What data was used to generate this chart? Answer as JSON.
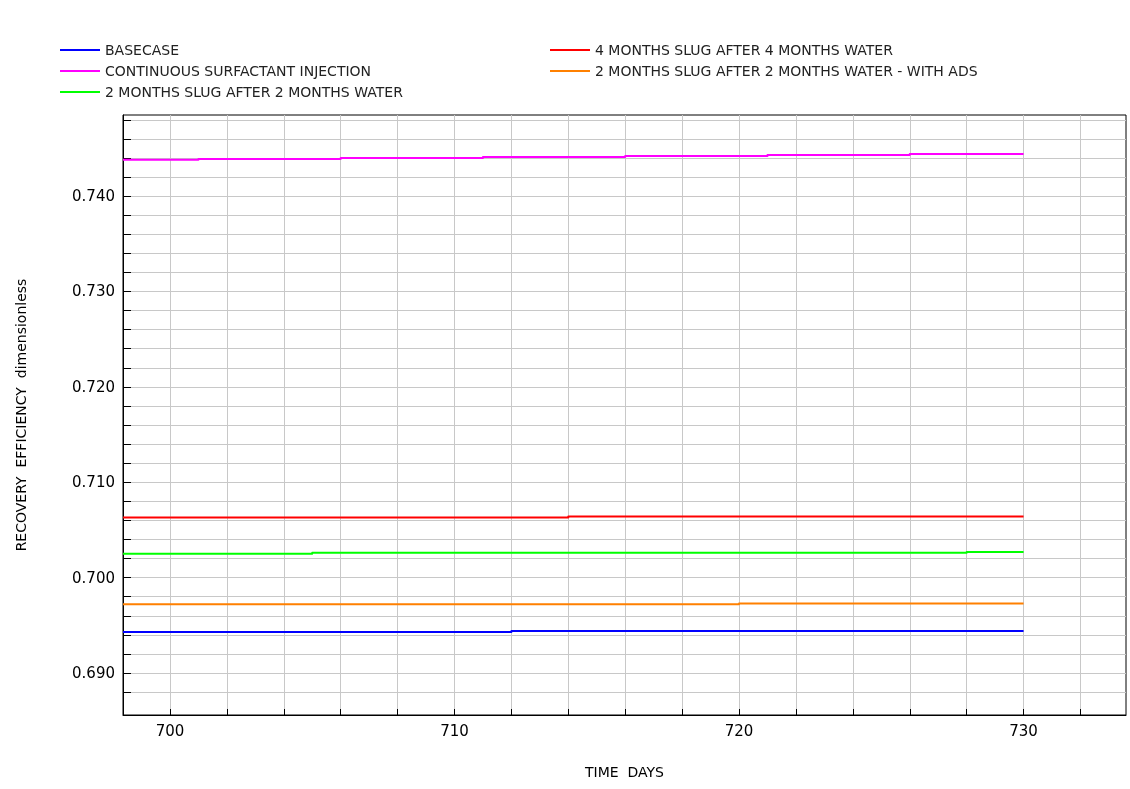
{
  "chart_data": {
    "type": "step",
    "xlabel": "TIME  DAYS",
    "ylabel": "RECOVERY  EFFICIENCY  dimensionless",
    "xlim": [
      698.35,
      733.6
    ],
    "xticks": [
      700,
      {
        "value": 702,
        "label": null
      },
      {
        "value": 704,
        "label": null
      },
      {
        "value": 706,
        "label": null
      },
      {
        "value": 708,
        "label": null
      },
      710,
      {
        "value": 712,
        "label": null
      },
      {
        "value": 714,
        "label": null
      },
      {
        "value": 716,
        "label": null
      },
      {
        "value": 718,
        "label": null
      },
      720,
      {
        "value": 722,
        "label": null
      },
      {
        "value": 724,
        "label": null
      },
      {
        "value": 726,
        "label": null
      },
      {
        "value": 728,
        "label": null
      },
      730,
      {
        "value": 732,
        "label": null
      }
    ],
    "ylim": [
      0.6856,
      0.7485
    ],
    "yticks": [
      {
        "value": 0.688,
        "label": null
      },
      "0.690",
      {
        "value": 0.692,
        "label": null
      },
      {
        "value": 0.694,
        "label": null
      },
      {
        "value": 0.696,
        "label": null
      },
      {
        "value": 0.698,
        "label": null
      },
      {
        "value": 0.7,
        "label": "0.700"
      },
      {
        "value": 0.702,
        "label": null
      },
      {
        "value": 0.704,
        "label": null
      },
      {
        "value": 0.706,
        "label": null
      },
      {
        "value": 0.708,
        "label": null
      },
      {
        "value": 0.71,
        "label": "0.710"
      },
      {
        "value": 0.712,
        "label": null
      },
      {
        "value": 0.714,
        "label": null
      },
      {
        "value": 0.716,
        "label": null
      },
      {
        "value": 0.718,
        "label": null
      },
      {
        "value": 0.72,
        "label": "0.720"
      },
      {
        "value": 0.722,
        "label": null
      },
      {
        "value": 0.724,
        "label": null
      },
      {
        "value": 0.726,
        "label": null
      },
      {
        "value": 0.728,
        "label": null
      },
      {
        "value": 0.73,
        "label": "0.730"
      },
      {
        "value": 0.732,
        "label": null
      },
      {
        "value": 0.734,
        "label": null
      },
      {
        "value": 0.736,
        "label": null
      },
      {
        "value": 0.738,
        "label": null
      },
      {
        "value": 0.74,
        "label": "0.740"
      },
      {
        "value": 0.742,
        "label": null
      },
      {
        "value": 0.744,
        "label": null
      },
      {
        "value": 0.746,
        "label": null
      },
      {
        "value": 0.748,
        "label": null
      }
    ],
    "grid": true,
    "legend": "top",
    "marker": "none",
    "line_style": "solid",
    "series": [
      {
        "name": "BASECASE",
        "color": "#0000ff",
        "x": [
          698.35,
          712,
          730
        ],
        "values": [
          0.6943,
          0.6944,
          0.6944
        ]
      },
      {
        "name": "4 MONTHS SLUG AFTER 4 MONTHS WATER",
        "color": "#ff0000",
        "x": [
          698.35,
          714,
          730
        ],
        "values": [
          0.7063,
          0.7064,
          0.7064
        ]
      },
      {
        "name": "CONTINUOUS SURFACTANT INJECTION",
        "color": "#ff00ff",
        "x": [
          698.35,
          701,
          706,
          711,
          716,
          721,
          726,
          730
        ],
        "values": [
          0.7438,
          0.7439,
          0.744,
          0.7441,
          0.7442,
          0.7443,
          0.7444,
          0.7444
        ]
      },
      {
        "name": "2 MONTHS SLUG AFTER 2 MONTHS WATER - WITH ADS",
        "color": "#ff8000",
        "x": [
          698.35,
          720,
          730
        ],
        "values": [
          0.6972,
          0.6973,
          0.6973
        ]
      },
      {
        "name": "2 MONTHS SLUG AFTER 2 MONTHS WATER",
        "color": "#00ff00",
        "x": [
          698.35,
          705,
          728,
          730
        ],
        "values": [
          0.7025,
          0.7026,
          0.7027,
          0.7027
        ]
      }
    ]
  }
}
